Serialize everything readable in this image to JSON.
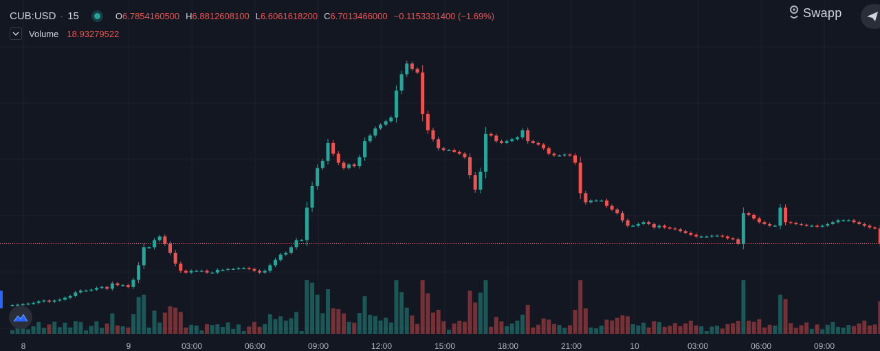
{
  "legend": {
    "symbol": "CUB:USD",
    "interval": "15",
    "open_label": "O",
    "open_value": "6.7854160500",
    "high_label": "H",
    "high_value": "6.8812608100",
    "low_label": "L",
    "low_value": "6.6061618200",
    "close_label": "C",
    "close_value": "6.7013466000",
    "change": "−0.1153331400 (−1.69%)",
    "volume_label": "Volume",
    "volume_value": "18.93279522"
  },
  "brand": {
    "name": "Swapp",
    "logo_icon": "swapp-logo-icon"
  },
  "time_axis": {
    "labels": [
      "8",
      "9",
      "03:00",
      "06:00",
      "09:00",
      "12:00",
      "15:00",
      "18:00",
      "21:00",
      "10",
      "03:00",
      "06:00",
      "09:00"
    ]
  },
  "colors": {
    "up": "#26a69a",
    "down": "#ef5350",
    "background": "#131722",
    "grid": "#1e222d"
  },
  "chart_data": {
    "type": "candlestick",
    "title": "CUB:USD 15",
    "interval": "15 minutes",
    "price_range": [
      6.2,
      7.9
    ],
    "last_price": 6.7013466,
    "ohlc_up_color": "#26a69a",
    "ohlc_down_color": "#ef5350",
    "closes": [
      6.36,
      6.362,
      6.365,
      6.368,
      6.372,
      6.38,
      6.385,
      6.378,
      6.385,
      6.39,
      6.4,
      6.41,
      6.43,
      6.44,
      6.44,
      6.445,
      6.455,
      6.46,
      6.45,
      6.48,
      6.47,
      6.47,
      6.46,
      6.5,
      6.58,
      6.68,
      6.68,
      6.72,
      6.74,
      6.7,
      6.65,
      6.59,
      6.55,
      6.54,
      6.55,
      6.55,
      6.55,
      6.54,
      6.54,
      6.555,
      6.555,
      6.56,
      6.56,
      6.565,
      6.565,
      6.56,
      6.55,
      6.54,
      6.55,
      6.58,
      6.61,
      6.64,
      6.65,
      6.68,
      6.72,
      6.72,
      6.9,
      7.02,
      7.12,
      7.16,
      7.26,
      7.2,
      7.15,
      7.12,
      7.14,
      7.13,
      7.18,
      7.27,
      7.3,
      7.34,
      7.36,
      7.38,
      7.4,
      7.55,
      7.64,
      7.7,
      7.67,
      7.65,
      7.42,
      7.33,
      7.28,
      7.23,
      7.22,
      7.22,
      7.21,
      7.2,
      7.18,
      7.08,
      7.0,
      7.1,
      7.31,
      7.3,
      7.27,
      7.26,
      7.27,
      7.28,
      7.29,
      7.33,
      7.27,
      7.26,
      7.25,
      7.23,
      7.2,
      7.19,
      7.19,
      7.195,
      7.19,
      7.15,
      6.98,
      6.93,
      6.94,
      6.94,
      6.94,
      6.91,
      6.89,
      6.87,
      6.83,
      6.8,
      6.8,
      6.81,
      6.82,
      6.81,
      6.79,
      6.8,
      6.79,
      6.785,
      6.78,
      6.77,
      6.76,
      6.75,
      6.74,
      6.74,
      6.74,
      6.745,
      6.745,
      6.74,
      6.73,
      6.725,
      6.7,
      6.87,
      6.86,
      6.84,
      6.82,
      6.81,
      6.8,
      6.8,
      6.9,
      6.82,
      6.815,
      6.81,
      6.805,
      6.8,
      6.8,
      6.795,
      6.8,
      6.81,
      6.82,
      6.83,
      6.83,
      6.83,
      6.82,
      6.81,
      6.8,
      6.79,
      6.785,
      6.7013466
    ]
  }
}
